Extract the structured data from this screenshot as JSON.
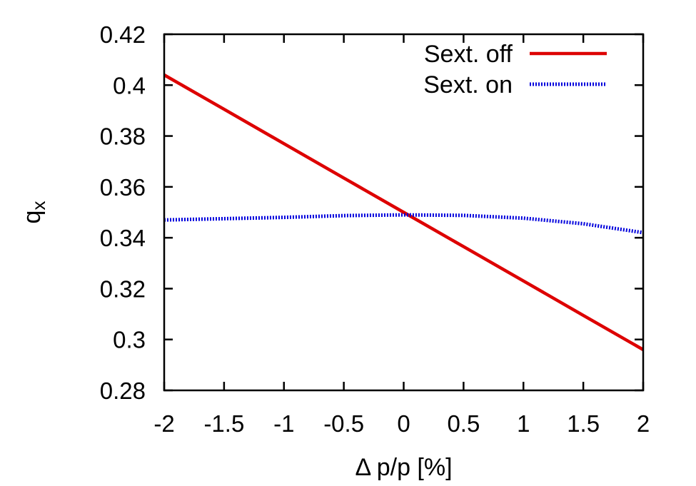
{
  "chart_data": {
    "type": "line",
    "xlabel": "Δ p/p [%]",
    "ylabel": "q",
    "ylabel_subscript": "x",
    "xlim": [
      -2,
      2
    ],
    "ylim": [
      0.28,
      0.42
    ],
    "xticks": [
      -2,
      -1.5,
      -1,
      -0.5,
      0,
      0.5,
      1,
      1.5,
      2
    ],
    "xtick_labels": [
      "-2",
      "-1.5",
      "-1",
      "-0.5",
      "0",
      "0.5",
      "1",
      "1.5",
      "2"
    ],
    "yticks": [
      0.28,
      0.3,
      0.32,
      0.34,
      0.36,
      0.38,
      0.4,
      0.42
    ],
    "ytick_labels": [
      "0.28",
      "0.3",
      "0.32",
      "0.34",
      "0.36",
      "0.38",
      "0.4",
      "0.42"
    ],
    "grid": false,
    "legend_position": "top-right",
    "series": [
      {
        "name": "Sext. off",
        "color": "#dd0000",
        "style": "solid",
        "x": [
          -2,
          -1.5,
          -1,
          -0.5,
          0,
          0.5,
          1,
          1.5,
          2
        ],
        "y": [
          0.404,
          0.3905,
          0.377,
          0.3635,
          0.35,
          0.3365,
          0.323,
          0.3095,
          0.296
        ]
      },
      {
        "name": "Sext. on",
        "color": "#0000dd",
        "style": "dotted",
        "x": [
          -2,
          -1.5,
          -1,
          -0.5,
          0,
          0.5,
          1,
          1.5,
          2
        ],
        "y": [
          0.347,
          0.3475,
          0.348,
          0.3487,
          0.349,
          0.3488,
          0.3477,
          0.3455,
          0.342
        ]
      }
    ]
  }
}
